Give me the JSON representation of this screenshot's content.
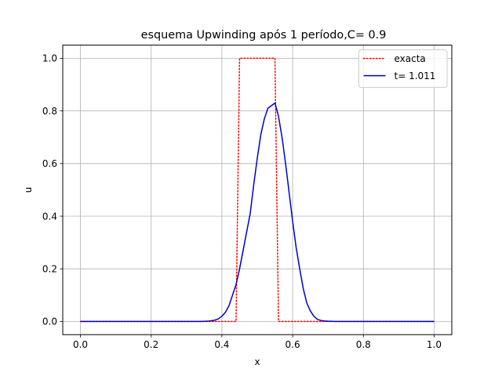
{
  "chart_data": {
    "type": "line",
    "title": "esquema Upwinding após 1 período,C= 0.9",
    "xlabel": "x",
    "ylabel": "u",
    "xlim": [
      -0.05,
      1.05
    ],
    "ylim": [
      -0.05,
      1.05
    ],
    "xticks": [
      0.0,
      0.2,
      0.4,
      0.6,
      0.8,
      1.0
    ],
    "xtick_labels": [
      "0.0",
      "0.2",
      "0.4",
      "0.6",
      "0.8",
      "1.0"
    ],
    "yticks": [
      0.0,
      0.2,
      0.4,
      0.6,
      0.8,
      1.0
    ],
    "ytick_labels": [
      "0.0",
      "0.2",
      "0.4",
      "0.6",
      "0.8",
      "1.0"
    ],
    "grid": true,
    "legend_position": "top-right",
    "series": [
      {
        "name": "exacta",
        "color": "#ff0000",
        "style": "dotted",
        "x": [
          0.0,
          0.44,
          0.44,
          0.45,
          0.45,
          0.55,
          0.55,
          0.56,
          0.56,
          1.0
        ],
        "y": [
          0.0,
          0.0,
          0.0,
          1.0,
          1.0,
          1.0,
          1.0,
          0.0,
          0.0,
          0.0
        ]
      },
      {
        "name": "t= 1.011",
        "color": "#0000cc",
        "style": "solid",
        "x": [
          0.0,
          0.34,
          0.36,
          0.38,
          0.39,
          0.4,
          0.41,
          0.42,
          0.43,
          0.44,
          0.45,
          0.46,
          0.47,
          0.48,
          0.49,
          0.5,
          0.51,
          0.52,
          0.53,
          0.54,
          0.55,
          0.56,
          0.57,
          0.58,
          0.59,
          0.6,
          0.61,
          0.62,
          0.63,
          0.64,
          0.65,
          0.66,
          0.67,
          0.68,
          0.69,
          0.7,
          0.72,
          1.0
        ],
        "y": [
          0.0,
          0.0,
          0.001,
          0.005,
          0.01,
          0.02,
          0.035,
          0.06,
          0.1,
          0.14,
          0.2,
          0.27,
          0.34,
          0.41,
          0.52,
          0.62,
          0.71,
          0.77,
          0.81,
          0.82,
          0.83,
          0.78,
          0.7,
          0.6,
          0.49,
          0.38,
          0.28,
          0.2,
          0.125,
          0.07,
          0.04,
          0.02,
          0.008,
          0.004,
          0.002,
          0.001,
          0.0,
          0.0
        ]
      }
    ]
  }
}
